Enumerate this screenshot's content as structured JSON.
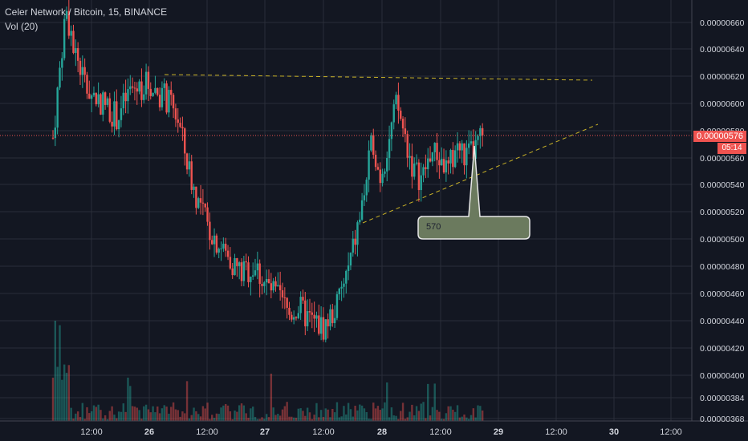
{
  "header": {
    "symbol_line": "Celer Network / Bitcoin, 15, BINANCE",
    "volume_label": "Vol (20)"
  },
  "last_price": {
    "label": "0.00000576",
    "countdown": "05:14",
    "color": "#ef5350"
  },
  "callout": {
    "text": "570",
    "fill": "#6b7a5e"
  },
  "colors": {
    "background": "#131722",
    "grid": "#2a2e39",
    "axis_text": "#d1d4dc",
    "up": "#26a69a",
    "down": "#ef5350",
    "trendline": "#c9b227"
  },
  "chart_data": {
    "type": "candlestick",
    "symbol": "Celer Network / Bitcoin",
    "interval": "15",
    "exchange": "BINANCE",
    "y_ticks": [
      "0.00000660",
      "0.00000640",
      "0.00000620",
      "0.00000600",
      "0.00000580",
      "0.00000560",
      "0.00000540",
      "0.00000520",
      "0.00000500",
      "0.00000480",
      "0.00000460",
      "0.00000440",
      "0.00000420",
      "0.00000400",
      "0.00000384",
      "0.00000368"
    ],
    "x_ticks": [
      "12:00",
      "26",
      "12:00",
      "27",
      "12:00",
      "28",
      "12:00",
      "29",
      "12:00",
      "30",
      "12:00"
    ],
    "price_range": [
      4.1e-06,
      6.7e-06
    ],
    "series_keypoints": [
      {
        "t": 0.0,
        "price": 5.75e-06
      },
      {
        "t": 0.03,
        "price": 6.7e-06
      },
      {
        "t": 0.05,
        "price": 6.4e-06
      },
      {
        "t": 0.08,
        "price": 6.1e-06
      },
      {
        "t": 0.12,
        "price": 6e-06
      },
      {
        "t": 0.15,
        "price": 5.9e-06
      },
      {
        "t": 0.18,
        "price": 6.1e-06
      },
      {
        "t": 0.22,
        "price": 6.15e-06
      },
      {
        "t": 0.26,
        "price": 6.05e-06
      },
      {
        "t": 0.29,
        "price": 5.9e-06
      },
      {
        "t": 0.31,
        "price": 5.6e-06
      },
      {
        "t": 0.33,
        "price": 5.35e-06
      },
      {
        "t": 0.36,
        "price": 5.1e-06
      },
      {
        "t": 0.4,
        "price": 4.9e-06
      },
      {
        "t": 0.44,
        "price": 4.75e-06
      },
      {
        "t": 0.47,
        "price": 4.8e-06
      },
      {
        "t": 0.5,
        "price": 4.65e-06
      },
      {
        "t": 0.53,
        "price": 4.55e-06
      },
      {
        "t": 0.55,
        "price": 4.45e-06
      },
      {
        "t": 0.57,
        "price": 4.5e-06
      },
      {
        "t": 0.6,
        "price": 4.4e-06
      },
      {
        "t": 0.63,
        "price": 4.35e-06
      },
      {
        "t": 0.66,
        "price": 4.5e-06
      },
      {
        "t": 0.69,
        "price": 4.8e-06
      },
      {
        "t": 0.72,
        "price": 5.25e-06
      },
      {
        "t": 0.745,
        "price": 5.75e-06
      },
      {
        "t": 0.76,
        "price": 5.45e-06
      },
      {
        "t": 0.78,
        "price": 5.7e-06
      },
      {
        "t": 0.8,
        "price": 6e-06
      },
      {
        "t": 0.82,
        "price": 5.75e-06
      },
      {
        "t": 0.84,
        "price": 5.5e-06
      },
      {
        "t": 0.86,
        "price": 5.45e-06
      },
      {
        "t": 0.88,
        "price": 5.65e-06
      },
      {
        "t": 0.9,
        "price": 5.6e-06
      },
      {
        "t": 0.92,
        "price": 5.5e-06
      },
      {
        "t": 0.94,
        "price": 5.7e-06
      },
      {
        "t": 0.96,
        "price": 5.6e-06
      },
      {
        "t": 0.98,
        "price": 5.65e-06
      },
      {
        "t": 1.0,
        "price": 5.76e-06
      }
    ],
    "trendlines": [
      {
        "name": "resistance",
        "points": [
          [
            6.2e-06,
            0.0
          ],
          [
            6.2e-06,
            1.0
          ]
        ]
      },
      {
        "name": "support",
        "points": [
          [
            5.1e-06,
            0.0
          ],
          [
            5.8e-06,
            1.0
          ]
        ]
      }
    ],
    "last_price": 5.76e-06
  }
}
